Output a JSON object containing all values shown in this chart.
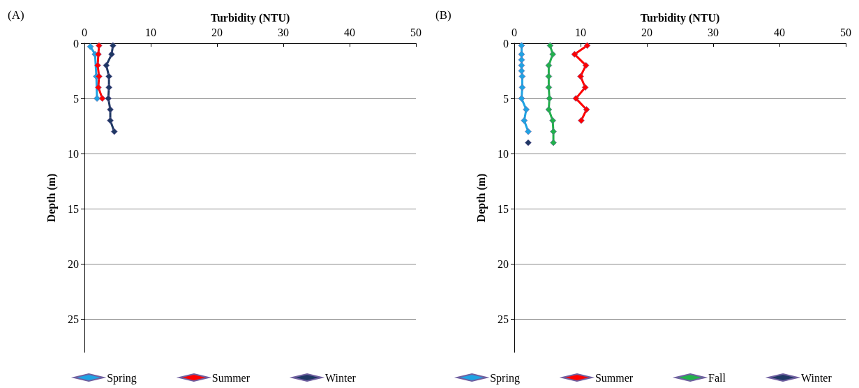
{
  "chart_data": [
    {
      "type": "line",
      "title": "(A)",
      "xlabel": "Turbidity (NTU)",
      "ylabel": "Depth (m)",
      "xlim": [
        0,
        50
      ],
      "xticks": [
        0,
        10,
        20,
        30,
        40,
        50
      ],
      "ylim": [
        28,
        0
      ],
      "yticks": [
        0,
        5,
        10,
        15,
        20,
        25
      ],
      "grid": "y",
      "legend": "bottom",
      "marker": "diamond",
      "line_style": "solid",
      "series": [
        {
          "name": "Spring",
          "color": "#1fa3e3",
          "x": [
            0.9,
            1.6,
            1.8,
            1.9
          ],
          "values": [
            0.3,
            1,
            3,
            5
          ]
        },
        {
          "name": "Summer",
          "color": "#ff0000",
          "x": [
            2.2,
            2.1,
            2.0,
            2.2,
            2.1,
            2.7
          ],
          "values": [
            0.2,
            1,
            2,
            3,
            4,
            5
          ]
        },
        {
          "name": "Winter",
          "color": "#1f3864",
          "x": [
            4.3,
            4.1,
            3.3,
            3.7,
            3.7,
            3.6,
            3.9,
            3.9,
            4.5
          ],
          "values": [
            0.2,
            1,
            2,
            3,
            4,
            5,
            6,
            7,
            8
          ]
        }
      ]
    },
    {
      "type": "line",
      "title": "(B)",
      "xlabel": "Turbidity (NTU)",
      "ylabel": "Depth (m)",
      "xlim": [
        0,
        50
      ],
      "xticks": [
        0,
        10,
        20,
        30,
        40,
        50
      ],
      "ylim": [
        28,
        0
      ],
      "yticks": [
        0,
        5,
        10,
        15,
        20,
        25
      ],
      "grid": "y",
      "legend": "bottom",
      "marker": "diamond",
      "line_style": "solid",
      "series": [
        {
          "name": "Spring",
          "color": "#1fa3e3",
          "x": [
            1.1,
            1.1,
            1.1,
            1.1,
            1.1,
            1.2,
            1.2,
            1.1,
            1.8,
            1.5,
            2.1
          ],
          "values": [
            0.2,
            1,
            1.5,
            2,
            2.5,
            3,
            4,
            5,
            6,
            7,
            8
          ]
        },
        {
          "name": "Summer",
          "color": "#ff0000",
          "x": [
            11.0,
            9.1,
            10.8,
            10.0,
            10.7,
            9.3,
            10.9,
            10.1
          ],
          "values": [
            0.2,
            1,
            2,
            3,
            4,
            5,
            6,
            7
          ]
        },
        {
          "name": "Fall",
          "color": "#22b14c",
          "x": [
            5.4,
            5.8,
            5.2,
            5.2,
            5.2,
            5.3,
            5.2,
            5.8,
            5.9,
            5.9
          ],
          "values": [
            0.2,
            1,
            2,
            3,
            4,
            5,
            6,
            7,
            8,
            9
          ]
        },
        {
          "name": "Winter",
          "color": "#1f3864",
          "x": [
            2.1
          ],
          "values": [
            9
          ]
        }
      ]
    }
  ]
}
